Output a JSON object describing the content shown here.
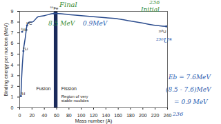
{
  "chart_data": {
    "type": "line",
    "x_label": "Mass number (A)",
    "y_label": "Binding energy per nucleon (MeV)",
    "x": [
      2,
      3,
      6,
      9,
      12,
      16,
      20,
      30,
      40,
      56,
      80,
      100,
      120,
      140,
      160,
      180,
      200,
      220,
      238
    ],
    "values": [
      1.1,
      2.6,
      5.3,
      6.5,
      7.7,
      8.0,
      8.0,
      8.5,
      8.6,
      8.8,
      8.7,
      8.6,
      8.5,
      8.4,
      8.3,
      8.1,
      7.9,
      7.7,
      7.6
    ],
    "color": "#2a4b8d",
    "xlim": [
      0,
      240
    ],
    "xticks": [
      0,
      20,
      40,
      60,
      80,
      100,
      120,
      140,
      160,
      180,
      200,
      220,
      240
    ],
    "ylim": [
      0,
      9
    ],
    "yticks": [
      0,
      1,
      2,
      3,
      4,
      5,
      6,
      7,
      8,
      9
    ],
    "nuclides": [
      {
        "label": "²H",
        "x": 2,
        "y": 1.1
      },
      {
        "label": "⁴He",
        "x": 4,
        "y": 7.1
      },
      {
        "label": "⁶Li",
        "x": 6,
        "y": 5.3
      },
      {
        "label": "¹²C",
        "x": 12,
        "y": 7.7
      },
      {
        "label": "⁵⁶Fe",
        "x": 56,
        "y": 8.8
      },
      {
        "label": "²³⁸U",
        "x": 238,
        "y": 7.6
      }
    ],
    "stable_region": {
      "label": "Region of very\nstable nuclides",
      "x": [
        56,
        62
      ],
      "color": "#1a2a5a"
    },
    "fusion_label": "Fusion",
    "fission_label": "Fission",
    "annotations": [
      {
        "text": "Final",
        "color": "#2e8b3a"
      },
      {
        "text": "236",
        "color": "#2e8b3a"
      },
      {
        "text": "Initial",
        "color": "#2e8b3a"
      },
      {
        "text": "8.5 MeV",
        "color": "#2e8b3a"
      },
      {
        "text": "0.9MeV",
        "color": "#2a5db0"
      },
      {
        "text": "²³⁶U*",
        "color": "#2a5db0"
      },
      {
        "text": "Eb = 7.6MeV",
        "color": "#2a5db0"
      },
      {
        "text": "(8.5 - 7.6)MeV",
        "color": "#2a5db0"
      },
      {
        "text": "= 0.9 MeV",
        "color": "#2a5db0"
      },
      {
        "text": "236",
        "color": "#2a5db0"
      }
    ]
  }
}
